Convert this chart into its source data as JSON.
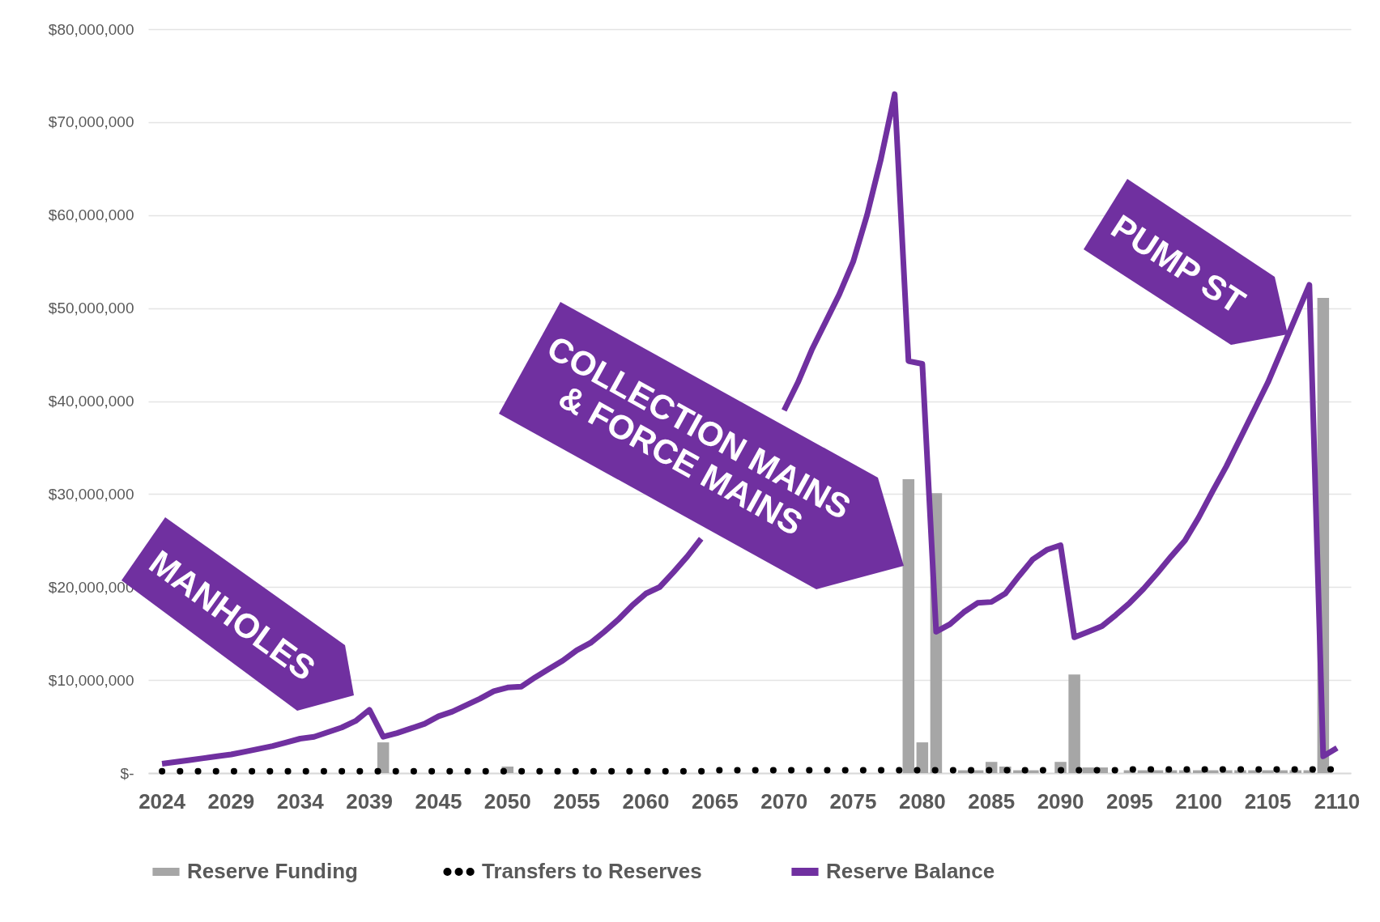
{
  "chart_data": {
    "type": "bar",
    "categories": [
      "2024",
      null,
      null,
      null,
      null,
      "2029",
      null,
      null,
      null,
      null,
      "2034",
      null,
      null,
      null,
      null,
      "2039",
      null,
      null,
      null,
      null,
      "2045",
      null,
      null,
      null,
      null,
      "2050",
      null,
      null,
      null,
      null,
      "2055",
      null,
      null,
      null,
      null,
      "2060",
      null,
      null,
      null,
      null,
      "2065",
      null,
      null,
      null,
      null,
      "2070",
      null,
      null,
      null,
      null,
      "2075",
      null,
      null,
      null,
      null,
      "2080",
      null,
      null,
      null,
      null,
      "2085",
      null,
      null,
      null,
      null,
      "2090",
      null,
      null,
      null,
      null,
      "2095",
      null,
      null,
      null,
      null,
      "2100",
      null,
      null,
      null,
      null,
      "2105",
      null,
      null,
      null,
      null,
      "2110"
    ],
    "series": [
      {
        "name": "Reserve Funding",
        "color": "#a6a6a6",
        "values": [
          0,
          0,
          0,
          0,
          0,
          0,
          0,
          0,
          0,
          0,
          0,
          0,
          0,
          0,
          0,
          0,
          3300000,
          0,
          0,
          0,
          0,
          0,
          0,
          0,
          0,
          700000,
          0,
          0,
          0,
          0,
          0,
          0,
          0,
          0,
          0,
          0,
          0,
          0,
          0,
          0,
          0,
          0,
          0,
          0,
          0,
          0,
          0,
          0,
          0,
          0,
          0,
          0,
          0,
          0,
          31600000,
          3300000,
          30100000,
          null,
          300000,
          300000,
          1200000,
          700000,
          300000,
          300000,
          null,
          1200000,
          10600000,
          600000,
          600000,
          null,
          300000,
          300000,
          300000,
          300000,
          300000,
          300000,
          300000,
          300000,
          300000,
          300000,
          300000,
          300000,
          300000,
          300000,
          51100000,
          0
        ]
      },
      {
        "name": "Transfers to Reserves",
        "type": "line",
        "line_style": "dotted",
        "color": "#000000",
        "values": [
          200000,
          200000,
          200000,
          200000,
          200000,
          200000,
          200000,
          200000,
          200000,
          200000,
          200000,
          200000,
          200000,
          200000,
          200000,
          200000,
          200000,
          200000,
          200000,
          200000,
          200000,
          200000,
          200000,
          200000,
          200000,
          200000,
          200000,
          200000,
          200000,
          200000,
          200000,
          200000,
          200000,
          200000,
          200000,
          200000,
          200000,
          200000,
          200000,
          200000,
          300000,
          300000,
          300000,
          300000,
          300000,
          300000,
          300000,
          300000,
          300000,
          300000,
          300000,
          300000,
          300000,
          300000,
          300000,
          300000,
          300000,
          300000,
          300000,
          300000,
          300000,
          300000,
          300000,
          300000,
          300000,
          300000,
          300000,
          300000,
          300000,
          300000,
          400000,
          400000,
          400000,
          400000,
          400000,
          400000,
          400000,
          400000,
          400000,
          400000,
          400000,
          400000,
          400000,
          400000,
          400000,
          400000
        ]
      },
      {
        "name": "Reserve Balance",
        "type": "line",
        "line_style": "solid",
        "color": "#7030a0",
        "values": [
          1000000,
          1200000,
          1400000,
          1600000,
          1800000,
          2000000,
          2300000,
          2600000,
          2900000,
          3300000,
          3700000,
          3900000,
          4400000,
          4900000,
          5600000,
          6800000,
          3900000,
          4300000,
          4800000,
          5300000,
          6100000,
          6600000,
          7300000,
          8000000,
          8800000,
          9200000,
          9300000,
          10300000,
          11200000,
          12100000,
          13200000,
          14000000,
          15200000,
          16500000,
          18000000,
          19300000,
          20000000,
          21600000,
          23300000,
          25200000,
          null,
          null,
          null,
          null,
          null,
          39000000,
          42000000,
          45500000,
          48500000,
          51500000,
          55000000,
          60000000,
          66000000,
          73000000,
          44300000,
          44000000,
          15200000,
          16000000,
          17300000,
          18300000,
          18400000,
          19300000,
          21200000,
          23000000,
          24000000,
          24500000,
          14600000,
          15200000,
          15800000,
          17000000,
          18300000,
          19800000,
          21500000,
          23300000,
          25000000,
          27500000,
          30300000,
          33000000,
          36000000,
          39000000,
          42000000,
          45500000,
          49000000,
          52500000,
          1800000,
          2700000
        ]
      }
    ],
    "ylim": [
      0,
      80000000
    ],
    "yticks": [
      {
        "value": 0,
        "label": "$-"
      },
      {
        "value": 10000000,
        "label": "$10,000,000"
      },
      {
        "value": 20000000,
        "label": "$20,000,000"
      },
      {
        "value": 30000000,
        "label": "$30,000,000"
      },
      {
        "value": 40000000,
        "label": "$40,000,000"
      },
      {
        "value": 50000000,
        "label": "$50,000,000"
      },
      {
        "value": 60000000,
        "label": "$60,000,000"
      },
      {
        "value": 70000000,
        "label": "$70,000,000"
      },
      {
        "value": 80000000,
        "label": "$80,000,000"
      }
    ],
    "grid": "y",
    "legend": "bottom",
    "annotations": [
      "MANHOLES",
      "COLLECTION MAINS & FORCE MAINS",
      "PUMP ST"
    ]
  }
}
